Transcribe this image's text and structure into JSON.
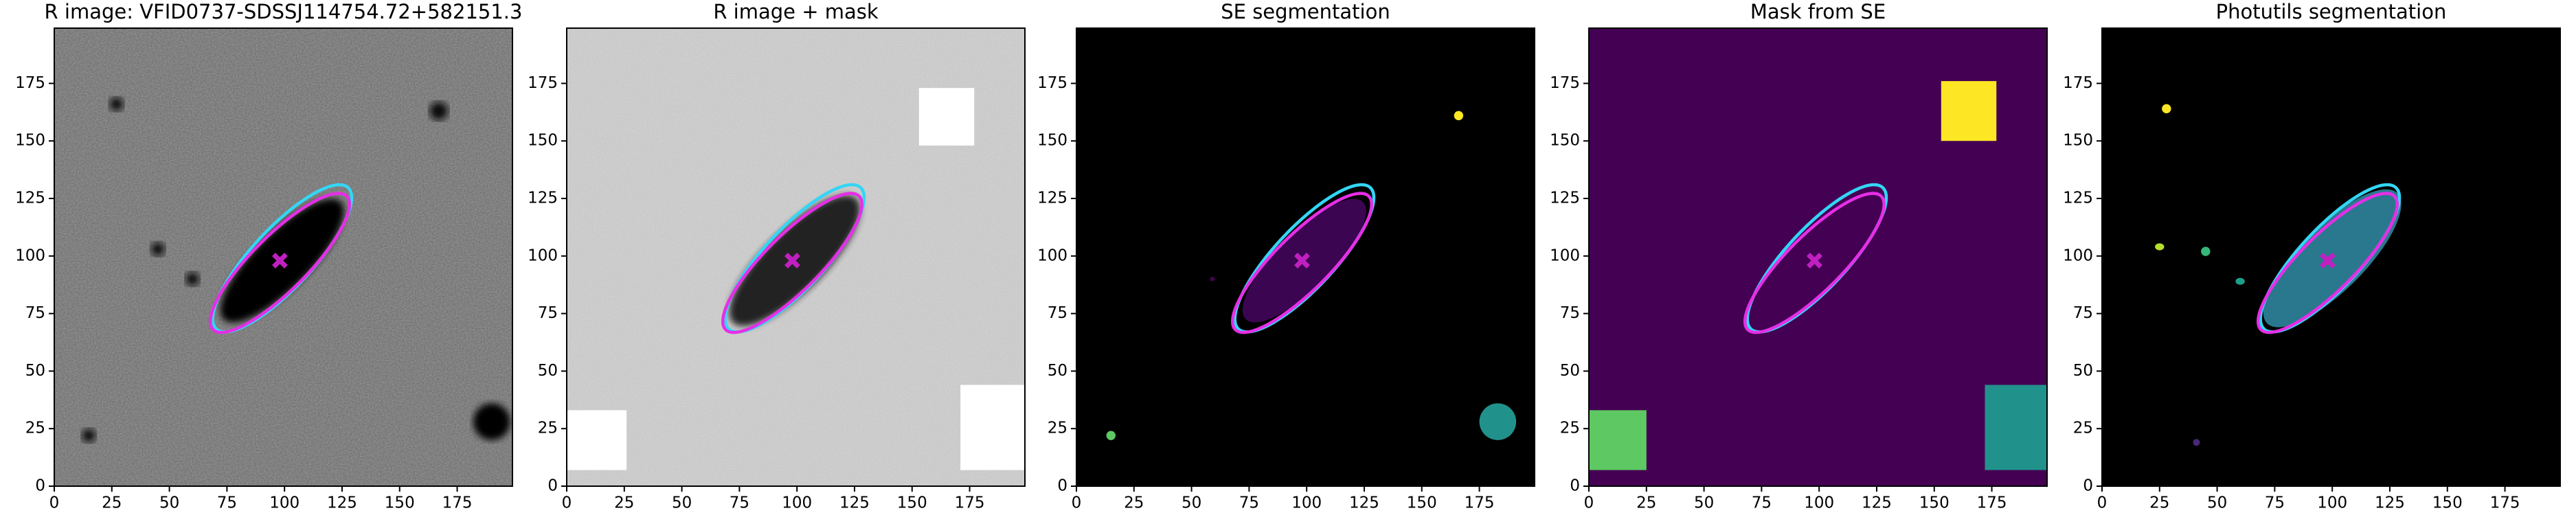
{
  "chart_data": [
    {
      "type": "image",
      "title": "R image: VFID0737-SDSSJ114754.72+582151.3",
      "xlim": [
        0,
        199
      ],
      "ylim": [
        0,
        199
      ],
      "xticks": [
        0,
        25,
        50,
        75,
        100,
        125,
        150,
        175
      ],
      "yticks": [
        0,
        25,
        50,
        75,
        100,
        125,
        150,
        175
      ],
      "background": "#6a6a6a",
      "noise": true,
      "regions": [
        {
          "shape": "ellipse",
          "x": 99,
          "y": 98,
          "rx": 36,
          "ry": 12,
          "angle": 45,
          "color": "#000000"
        },
        {
          "shape": "ellipse",
          "x": 190,
          "y": 28,
          "rx": 8,
          "ry": 8,
          "angle": 0,
          "color": "#000000"
        },
        {
          "shape": "ellipse",
          "x": 167,
          "y": 163,
          "rx": 4,
          "ry": 4,
          "angle": 0,
          "color": "#111111"
        },
        {
          "shape": "ellipse",
          "x": 27,
          "y": 166,
          "rx": 3,
          "ry": 3,
          "angle": 0,
          "color": "#111111"
        },
        {
          "shape": "ellipse",
          "x": 45,
          "y": 103,
          "rx": 3,
          "ry": 3,
          "angle": 0,
          "color": "#111111"
        },
        {
          "shape": "ellipse",
          "x": 15,
          "y": 22,
          "rx": 3,
          "ry": 3,
          "angle": 0,
          "color": "#111111"
        },
        {
          "shape": "ellipse",
          "x": 60,
          "y": 90,
          "rx": 3,
          "ry": 3,
          "angle": 0,
          "color": "#111111"
        }
      ],
      "ellipses": [
        {
          "color": "#33d6f5",
          "x": 99,
          "y": 99,
          "a": 42,
          "b": 13,
          "angle": 47
        },
        {
          "color": "#e62ee6",
          "x": 98,
          "y": 97,
          "a": 41,
          "b": 12,
          "angle": 45
        }
      ],
      "center": {
        "x": 98,
        "y": 98,
        "color": "#c020c0"
      }
    },
    {
      "type": "image",
      "title": "R image + mask",
      "xlim": [
        0,
        199
      ],
      "ylim": [
        0,
        199
      ],
      "xticks": [
        0,
        25,
        50,
        75,
        100,
        125,
        150,
        175
      ],
      "yticks": [
        0,
        25,
        50,
        75,
        100,
        125,
        150,
        175
      ],
      "background": "#d2d2d2",
      "noise": true,
      "regions": [
        {
          "shape": "ellipse",
          "x": 99,
          "y": 98,
          "rx": 38,
          "ry": 13,
          "angle": 45,
          "color": "#222222"
        },
        {
          "shape": "rect",
          "x": [
            153,
            177
          ],
          "y": [
            148,
            173
          ],
          "color": "#ffffff"
        },
        {
          "shape": "rect",
          "x": [
            0,
            26
          ],
          "y": [
            7,
            33
          ],
          "color": "#ffffff"
        },
        {
          "shape": "rect",
          "x": [
            171,
            199
          ],
          "y": [
            7,
            44
          ],
          "color": "#ffffff"
        }
      ],
      "ellipses": [
        {
          "color": "#33d6f5",
          "x": 99,
          "y": 99,
          "a": 42,
          "b": 13,
          "angle": 47
        },
        {
          "color": "#e62ee6",
          "x": 98,
          "y": 97,
          "a": 41,
          "b": 12,
          "angle": 45
        }
      ],
      "center": {
        "x": 98,
        "y": 98,
        "color": "#c020c0"
      }
    },
    {
      "type": "image",
      "title": "SE segmentation",
      "xlim": [
        0,
        199
      ],
      "ylim": [
        0,
        199
      ],
      "xticks": [
        0,
        25,
        50,
        75,
        100,
        125,
        150,
        175
      ],
      "yticks": [
        0,
        25,
        50,
        75,
        100,
        125,
        150,
        175
      ],
      "background": "#000000",
      "noise": false,
      "regions": [
        {
          "shape": "ellipse",
          "x": 99,
          "y": 98,
          "rx": 36,
          "ry": 12,
          "angle": 45,
          "color": "#3b0552"
        },
        {
          "shape": "ellipse",
          "x": 166,
          "y": 161,
          "rx": 2,
          "ry": 2,
          "angle": 0,
          "color": "#fde725"
        },
        {
          "shape": "ellipse",
          "x": 15,
          "y": 22,
          "rx": 2,
          "ry": 2,
          "angle": 0,
          "color": "#5ec962"
        },
        {
          "shape": "ellipse",
          "x": 183,
          "y": 28,
          "rx": 8,
          "ry": 8,
          "angle": 0,
          "color": "#21918c"
        },
        {
          "shape": "ellipse",
          "x": 59,
          "y": 90,
          "rx": 1,
          "ry": 1,
          "angle": 0,
          "color": "#440154"
        }
      ],
      "ellipses": [
        {
          "color": "#33d6f5",
          "x": 99,
          "y": 99,
          "a": 42,
          "b": 13,
          "angle": 47
        },
        {
          "color": "#e62ee6",
          "x": 98,
          "y": 97,
          "a": 41,
          "b": 12,
          "angle": 45
        }
      ],
      "center": {
        "x": 98,
        "y": 98,
        "color": "#c020c0"
      }
    },
    {
      "type": "image",
      "title": "Mask from SE",
      "xlim": [
        0,
        199
      ],
      "ylim": [
        0,
        199
      ],
      "xticks": [
        0,
        25,
        50,
        75,
        100,
        125,
        150,
        175
      ],
      "yticks": [
        0,
        25,
        50,
        75,
        100,
        125,
        150,
        175
      ],
      "background": "#440154",
      "noise": false,
      "regions": [
        {
          "shape": "rect",
          "x": [
            153,
            177
          ],
          "y": [
            150,
            176
          ],
          "color": "#fde725"
        },
        {
          "shape": "rect",
          "x": [
            0,
            25
          ],
          "y": [
            7,
            33
          ],
          "color": "#5ec962"
        },
        {
          "shape": "rect",
          "x": [
            172,
            199
          ],
          "y": [
            7,
            44
          ],
          "color": "#21918c"
        }
      ],
      "ellipses": [
        {
          "color": "#33d6f5",
          "x": 99,
          "y": 99,
          "a": 42,
          "b": 13,
          "angle": 47
        },
        {
          "color": "#e62ee6",
          "x": 98,
          "y": 97,
          "a": 41,
          "b": 12,
          "angle": 45
        }
      ],
      "center": {
        "x": 98,
        "y": 98,
        "color": "#c020c0"
      }
    },
    {
      "type": "image",
      "title": "Photutils segmentation",
      "xlim": [
        0,
        199
      ],
      "ylim": [
        0,
        199
      ],
      "xticks": [
        0,
        25,
        50,
        75,
        100,
        125,
        150,
        175
      ],
      "yticks": [
        0,
        25,
        50,
        75,
        100,
        125,
        150,
        175
      ],
      "background": "#000000",
      "noise": false,
      "regions": [
        {
          "shape": "ellipse",
          "x": 100,
          "y": 99,
          "rx": 40,
          "ry": 14,
          "angle": 45,
          "color": "#2a788e"
        },
        {
          "shape": "ellipse",
          "x": 28,
          "y": 164,
          "rx": 2,
          "ry": 2,
          "angle": 0,
          "color": "#fde725"
        },
        {
          "shape": "ellipse",
          "x": 25,
          "y": 104,
          "rx": 2,
          "ry": 1.5,
          "angle": 0,
          "color": "#b5de2b"
        },
        {
          "shape": "ellipse",
          "x": 45,
          "y": 102,
          "rx": 2,
          "ry": 2,
          "angle": 0,
          "color": "#35b779"
        },
        {
          "shape": "ellipse",
          "x": 60,
          "y": 89,
          "rx": 2,
          "ry": 1.5,
          "angle": 0,
          "color": "#1f9e89"
        },
        {
          "shape": "ellipse",
          "x": 41,
          "y": 19,
          "rx": 1.5,
          "ry": 1.5,
          "angle": 0,
          "color": "#482878"
        }
      ],
      "ellipses": [
        {
          "color": "#33d6f5",
          "x": 99,
          "y": 99,
          "a": 42,
          "b": 13,
          "angle": 47
        },
        {
          "color": "#e62ee6",
          "x": 98,
          "y": 97,
          "a": 41,
          "b": 12,
          "angle": 45
        }
      ],
      "center": {
        "x": 98,
        "y": 98,
        "color": "#c020c0"
      }
    }
  ]
}
